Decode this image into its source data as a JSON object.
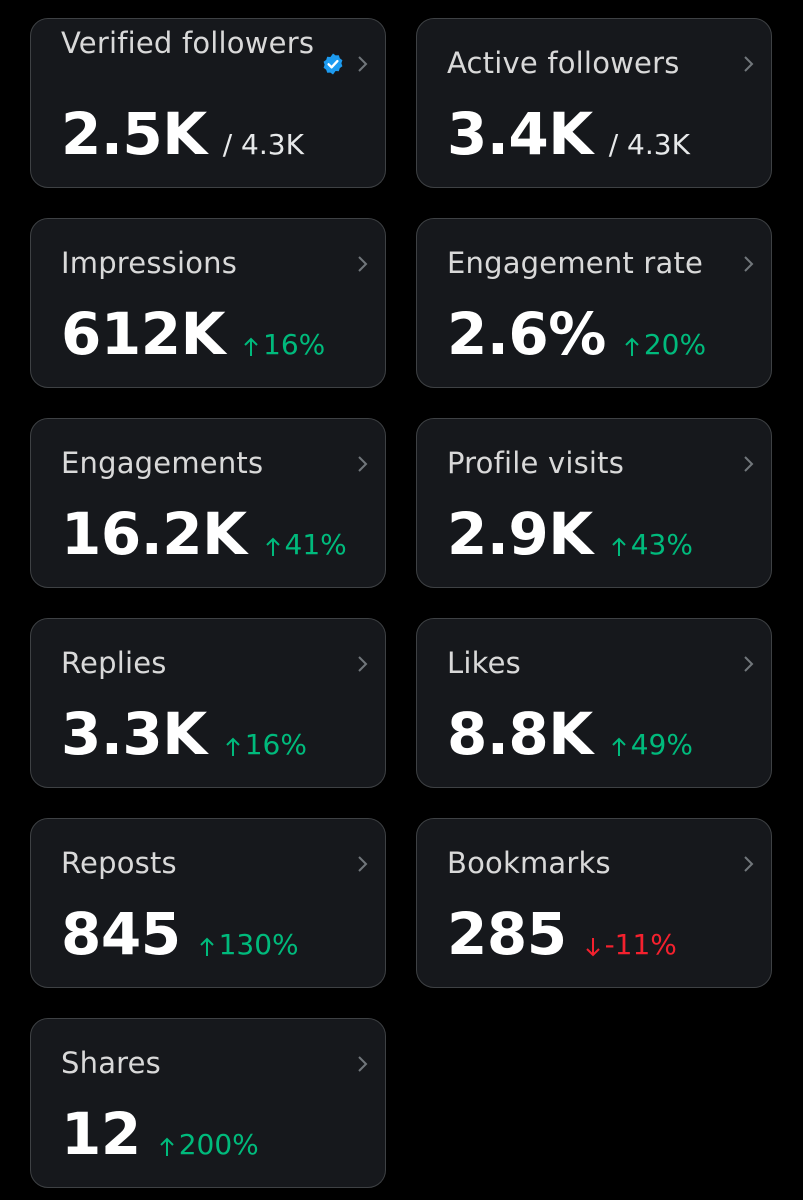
{
  "colors": {
    "page_bg": "#000000",
    "card_bg": "#16181c",
    "card_border": "#3e4144",
    "positive": "#00ba7c",
    "negative": "#f4212e",
    "verified_badge": "#1d9bf0"
  },
  "cards": {
    "verified_followers": {
      "title": "Verified followers",
      "value": "2.5K",
      "total": "/ 4.3K",
      "icon": "verified-badge-icon"
    },
    "active_followers": {
      "title": "Active followers",
      "value": "3.4K",
      "total": "/ 4.3K"
    },
    "impressions": {
      "title": "Impressions",
      "value": "612K",
      "change": "16%",
      "direction": "up"
    },
    "engagement_rate": {
      "title": "Engagement rate",
      "value": "2.6%",
      "change": "20%",
      "direction": "up"
    },
    "engagements": {
      "title": "Engagements",
      "value": "16.2K",
      "change": "41%",
      "direction": "up"
    },
    "profile_visits": {
      "title": "Profile visits",
      "value": "2.9K",
      "change": "43%",
      "direction": "up"
    },
    "replies": {
      "title": "Replies",
      "value": "3.3K",
      "change": "16%",
      "direction": "up"
    },
    "likes": {
      "title": "Likes",
      "value": "8.8K",
      "change": "49%",
      "direction": "up"
    },
    "reposts": {
      "title": "Reposts",
      "value": "845",
      "change": "130%",
      "direction": "up"
    },
    "bookmarks": {
      "title": "Bookmarks",
      "value": "285",
      "change": "-11%",
      "direction": "down"
    },
    "shares": {
      "title": "Shares",
      "value": "12",
      "change": "200%",
      "direction": "up"
    }
  }
}
